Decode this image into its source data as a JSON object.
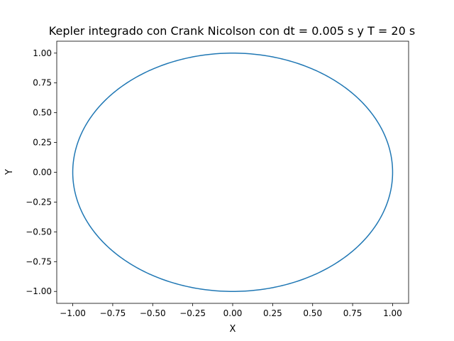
{
  "chart_data": {
    "type": "line",
    "title": "Kepler integrado con Crank Nicolson con dt = 0.005 s y T = 20 s",
    "xlabel": "X",
    "ylabel": "Y",
    "xlim": [
      -1.1,
      1.1
    ],
    "ylim": [
      -1.1,
      1.1
    ],
    "xticks": [
      -1.0,
      -0.75,
      -0.5,
      -0.25,
      0.0,
      0.25,
      0.5,
      0.75,
      1.0
    ],
    "xtick_labels": [
      "−1.00",
      "−0.75",
      "−0.50",
      "−0.25",
      "0.00",
      "0.25",
      "0.50",
      "0.75",
      "1.00"
    ],
    "yticks": [
      -1.0,
      -0.75,
      -0.5,
      -0.25,
      0.0,
      0.25,
      0.5,
      0.75,
      1.0
    ],
    "ytick_labels": [
      "−1.00",
      "−0.75",
      "−0.50",
      "−0.25",
      "0.00",
      "0.25",
      "0.50",
      "0.75",
      "1.00"
    ],
    "grid": false,
    "series": [
      {
        "color": "#1f77b4",
        "shape": "circle",
        "center": [
          0,
          0
        ],
        "radius": 1.0,
        "x": [
          1.0,
          0.924,
          0.707,
          0.383,
          0.0,
          -0.383,
          -0.707,
          -0.924,
          -1.0,
          -0.924,
          -0.707,
          -0.383,
          0.0,
          0.383,
          0.707,
          0.924,
          1.0
        ],
        "y": [
          0.0,
          0.383,
          0.707,
          0.924,
          1.0,
          0.924,
          0.707,
          0.383,
          0.0,
          -0.383,
          -0.707,
          -0.924,
          -1.0,
          -0.924,
          -0.707,
          -0.383,
          0.0
        ]
      }
    ]
  }
}
